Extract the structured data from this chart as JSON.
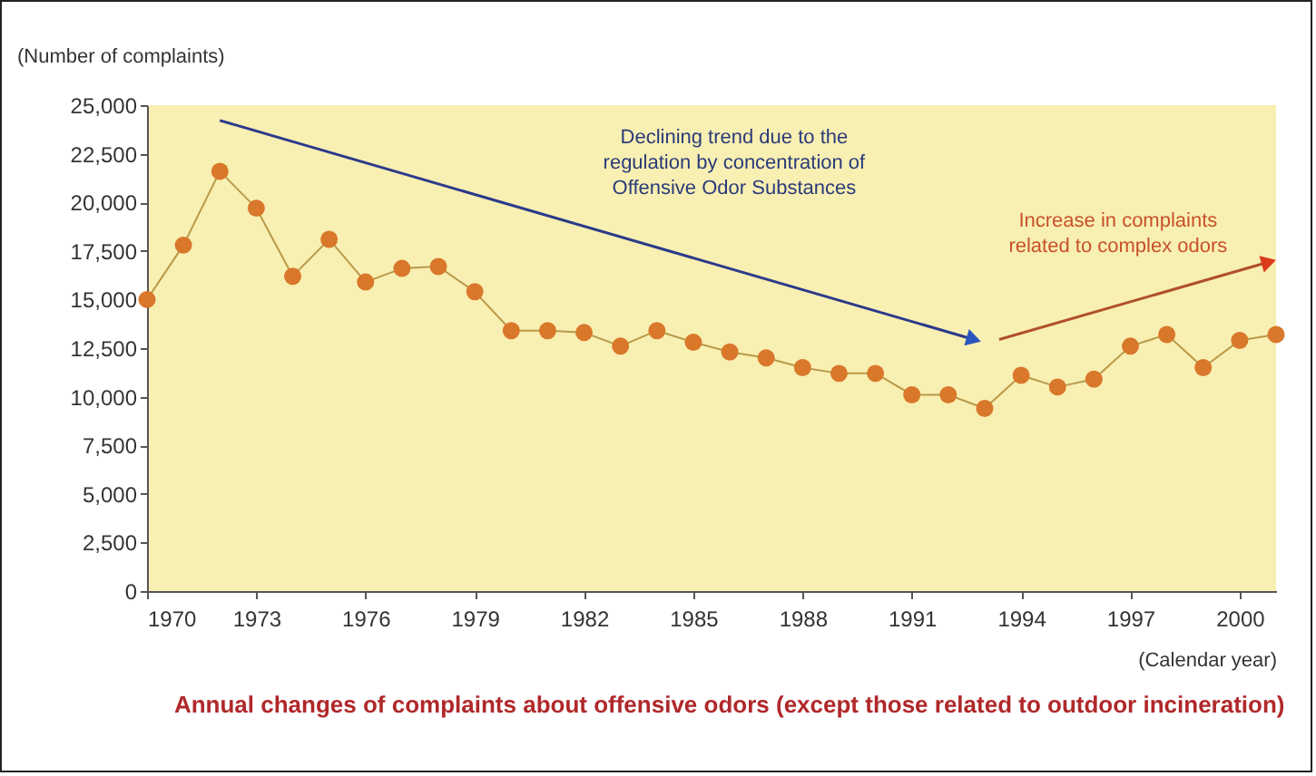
{
  "chart_data": {
    "type": "line",
    "title": "Annual changes of complaints about offensive odors (except those related to outdoor incineration)",
    "xlabel": "(Calendar year)",
    "ylabel": "(Number of complaints)",
    "x": [
      1970,
      1971,
      1972,
      1973,
      1974,
      1975,
      1976,
      1977,
      1978,
      1979,
      1980,
      1981,
      1982,
      1983,
      1984,
      1985,
      1986,
      1987,
      1988,
      1989,
      1990,
      1991,
      1992,
      1993,
      1994,
      1995,
      1996,
      1997,
      1998,
      1999,
      2000,
      2001
    ],
    "series": [
      {
        "color": "#d9772a",
        "values": [
          15000,
          17800,
          21600,
          19700,
          16200,
          18100,
          15900,
          16600,
          16700,
          15400,
          13400,
          13400,
          13300,
          12600,
          13400,
          12800,
          12300,
          12000,
          11500,
          11200,
          11200,
          10100,
          10100,
          9400,
          11100,
          10500,
          10900,
          12600,
          13200,
          11500,
          12900,
          13200
        ]
      }
    ],
    "xlim": [
      1970,
      2001
    ],
    "xticks": [
      1970,
      1973,
      1976,
      1979,
      1982,
      1985,
      1988,
      1991,
      1994,
      1997,
      2000
    ],
    "ylim": [
      0,
      25000
    ],
    "yticks": [
      {
        "value": 0,
        "label": "0"
      },
      {
        "value": 2500,
        "label": "2,500"
      },
      {
        "value": 5000,
        "label": "5,000"
      },
      {
        "value": 7500,
        "label": "7,500"
      },
      {
        "value": 10000,
        "label": "10,000"
      },
      {
        "value": 12500,
        "label": "12,500"
      },
      {
        "value": 15000,
        "label": "15,000"
      },
      {
        "value": 17500,
        "label": "17,500"
      },
      {
        "value": 20000,
        "label": "20,000"
      },
      {
        "value": 22500,
        "label": "22,500"
      },
      {
        "value": 25000,
        "label": "25,000"
      }
    ],
    "annotations": [
      "Declining trend due to the\nregulation by concentration of\nOffensive Odor Substances",
      "Increase in complaints\nrelated to complex odors"
    ],
    "marker": "circle",
    "line_style": "solid",
    "grid": false
  }
}
